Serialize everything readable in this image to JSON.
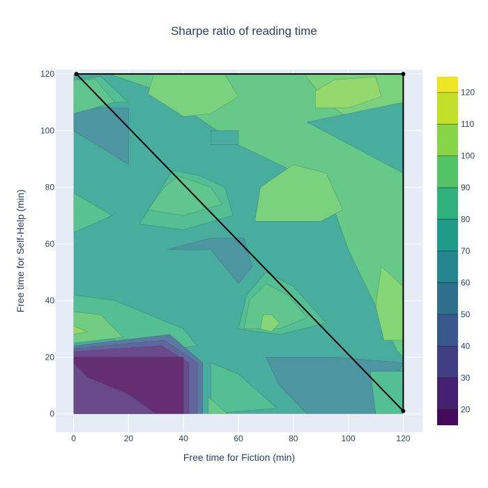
{
  "chart_data": {
    "type": "contour",
    "title": "Sharpe ratio of reading time",
    "xlabel": "Free time for Fiction (min)",
    "ylabel": "Free time for Self-Help (min)",
    "xlim": [
      -6.5,
      127
    ],
    "ylim": [
      -6.5,
      121.5
    ],
    "xticks": [
      0,
      20,
      40,
      60,
      80,
      100,
      120
    ],
    "yticks": [
      0,
      20,
      40,
      60,
      80,
      100,
      120
    ],
    "colorscale": "Viridis",
    "colorbar": {
      "range": [
        15,
        125
      ],
      "ticks": [
        20,
        30,
        40,
        50,
        60,
        70,
        80,
        90,
        100,
        110,
        120
      ]
    },
    "grid": true,
    "overlay": {
      "type": "line",
      "color": "#000000",
      "points": [
        [
          1,
          120
        ],
        [
          120,
          120
        ],
        [
          120,
          1
        ],
        [
          1,
          120
        ]
      ]
    },
    "regions": [
      {
        "value": 75,
        "points": [
          [
            0,
            0
          ],
          [
            120,
            0
          ],
          [
            120,
            120
          ],
          [
            0,
            120
          ]
        ]
      },
      {
        "value": 92,
        "points": [
          [
            13,
            120
          ],
          [
            120,
            120
          ],
          [
            120,
            20
          ],
          [
            118,
            22
          ],
          [
            100,
            58
          ],
          [
            92,
            80
          ],
          [
            75,
            88
          ],
          [
            60,
            95
          ],
          [
            40,
            108
          ],
          [
            28,
            115
          ]
        ]
      },
      {
        "value": 97,
        "points": [
          [
            27,
            113
          ],
          [
            30,
            122
          ],
          [
            55,
            120
          ],
          [
            60,
            112
          ],
          [
            50,
            106
          ],
          [
            40,
            105
          ]
        ]
      },
      {
        "value": 97,
        "points": [
          [
            68,
            80
          ],
          [
            80,
            88
          ],
          [
            92,
            85
          ],
          [
            98,
            72
          ],
          [
            90,
            68
          ],
          [
            80,
            68
          ],
          [
            66,
            68
          ]
        ]
      },
      {
        "value": 97,
        "points": [
          [
            80,
            125
          ],
          [
            100,
            125
          ],
          [
            120,
            125
          ],
          [
            120,
            103
          ],
          [
            102,
            103
          ],
          [
            92,
            110
          ]
        ]
      },
      {
        "value": 100,
        "points": [
          [
            112,
            52
          ],
          [
            120,
            45
          ],
          [
            120,
            26
          ],
          [
            113,
            26
          ],
          [
            110,
            38
          ]
        ]
      },
      {
        "value": 103,
        "points": [
          [
            88,
            114
          ],
          [
            95,
            118
          ],
          [
            110,
            119
          ],
          [
            112,
            112
          ],
          [
            100,
            108
          ],
          [
            88,
            108
          ]
        ]
      },
      {
        "value": 75,
        "points": [
          [
            85,
            103
          ],
          [
            120,
            110
          ],
          [
            120,
            85
          ]
        ]
      },
      {
        "value": 75,
        "points": [
          [
            50,
            100
          ],
          [
            60,
            100
          ],
          [
            60,
            95
          ],
          [
            50,
            95
          ]
        ]
      },
      {
        "value": 62,
        "points": [
          [
            0,
            108
          ],
          [
            20,
            108
          ],
          [
            20,
            88
          ],
          [
            0,
            100
          ]
        ]
      },
      {
        "value": 85,
        "points": [
          [
            0,
            118
          ],
          [
            10,
            119
          ],
          [
            20,
            110
          ],
          [
            0,
            110
          ]
        ]
      },
      {
        "value": 88,
        "points": [
          [
            0,
            64
          ],
          [
            14,
            70
          ],
          [
            0,
            78
          ]
        ]
      },
      {
        "value": 90,
        "points": [
          [
            0,
            118
          ],
          [
            8,
            118
          ],
          [
            15,
            110
          ],
          [
            0,
            106
          ]
        ]
      },
      {
        "value": 85,
        "points": [
          [
            24,
            67
          ],
          [
            40,
            65
          ],
          [
            58,
            70
          ],
          [
            55,
            80
          ],
          [
            46,
            84
          ],
          [
            36,
            86
          ]
        ]
      },
      {
        "value": 90,
        "points": [
          [
            27,
            72
          ],
          [
            40,
            70
          ],
          [
            54,
            74
          ],
          [
            50,
            80
          ],
          [
            38,
            84
          ],
          [
            33,
            80
          ]
        ]
      },
      {
        "value": 62,
        "points": [
          [
            34,
            58
          ],
          [
            50,
            58
          ],
          [
            60,
            46
          ],
          [
            65,
            52
          ],
          [
            62,
            62
          ],
          [
            50,
            62
          ]
        ]
      },
      {
        "value": 85,
        "points": [
          [
            60,
            30
          ],
          [
            75,
            28
          ],
          [
            92,
            32
          ],
          [
            80,
            45
          ],
          [
            70,
            50
          ],
          [
            63,
            42
          ]
        ]
      },
      {
        "value": 90,
        "points": [
          [
            62,
            30
          ],
          [
            75,
            30
          ],
          [
            85,
            34
          ],
          [
            78,
            42
          ],
          [
            70,
            46
          ],
          [
            64,
            40
          ]
        ]
      },
      {
        "value": 100,
        "points": [
          [
            68,
            30
          ],
          [
            72,
            29
          ],
          [
            75,
            32
          ],
          [
            72,
            35
          ],
          [
            69,
            35
          ]
        ]
      },
      {
        "value": 85,
        "points": [
          [
            0,
            30
          ],
          [
            30,
            22
          ],
          [
            45,
            24
          ],
          [
            40,
            30
          ],
          [
            15,
            40
          ],
          [
            0,
            42
          ]
        ]
      },
      {
        "value": 95,
        "points": [
          [
            0,
            25
          ],
          [
            18,
            27
          ],
          [
            10,
            35
          ],
          [
            0,
            36
          ]
        ]
      },
      {
        "value": 103,
        "points": [
          [
            0,
            28
          ],
          [
            5,
            29
          ],
          [
            0,
            31
          ]
        ]
      },
      {
        "value": 62,
        "points": [
          [
            70,
            20
          ],
          [
            95,
            20
          ],
          [
            120,
            18
          ],
          [
            110,
            0
          ],
          [
            85,
            0
          ],
          [
            75,
            10
          ]
        ]
      },
      {
        "value": 85,
        "points": [
          [
            108,
            15
          ],
          [
            120,
            15
          ],
          [
            120,
            0
          ],
          [
            110,
            0
          ]
        ]
      },
      {
        "value": 48,
        "points": [
          [
            0,
            24
          ],
          [
            35,
            28
          ],
          [
            47,
            18
          ],
          [
            47,
            0
          ],
          [
            0,
            0
          ]
        ]
      },
      {
        "value": 38,
        "points": [
          [
            0,
            23
          ],
          [
            33,
            26
          ],
          [
            45,
            18
          ],
          [
            45,
            0
          ],
          [
            0,
            0
          ]
        ]
      },
      {
        "value": 26,
        "points": [
          [
            0,
            22
          ],
          [
            32,
            24
          ],
          [
            42,
            18
          ],
          [
            42,
            0
          ],
          [
            0,
            0
          ]
        ]
      },
      {
        "value": 15,
        "points": [
          [
            0,
            20
          ],
          [
            40,
            20
          ],
          [
            40,
            0
          ],
          [
            0,
            0
          ],
          [
            0,
            18
          ]
        ]
      },
      {
        "value": 25,
        "points": [
          [
            0,
            18
          ],
          [
            5,
            13
          ],
          [
            20,
            7
          ],
          [
            30,
            0
          ],
          [
            0,
            0
          ]
        ]
      },
      {
        "value": 85,
        "points": [
          [
            50,
            18
          ],
          [
            60,
            14
          ],
          [
            74,
            2
          ],
          [
            50,
            0
          ]
        ]
      },
      {
        "value": 92,
        "points": [
          [
            49,
            6
          ],
          [
            56,
            0
          ],
          [
            49,
            0
          ]
        ]
      }
    ]
  }
}
